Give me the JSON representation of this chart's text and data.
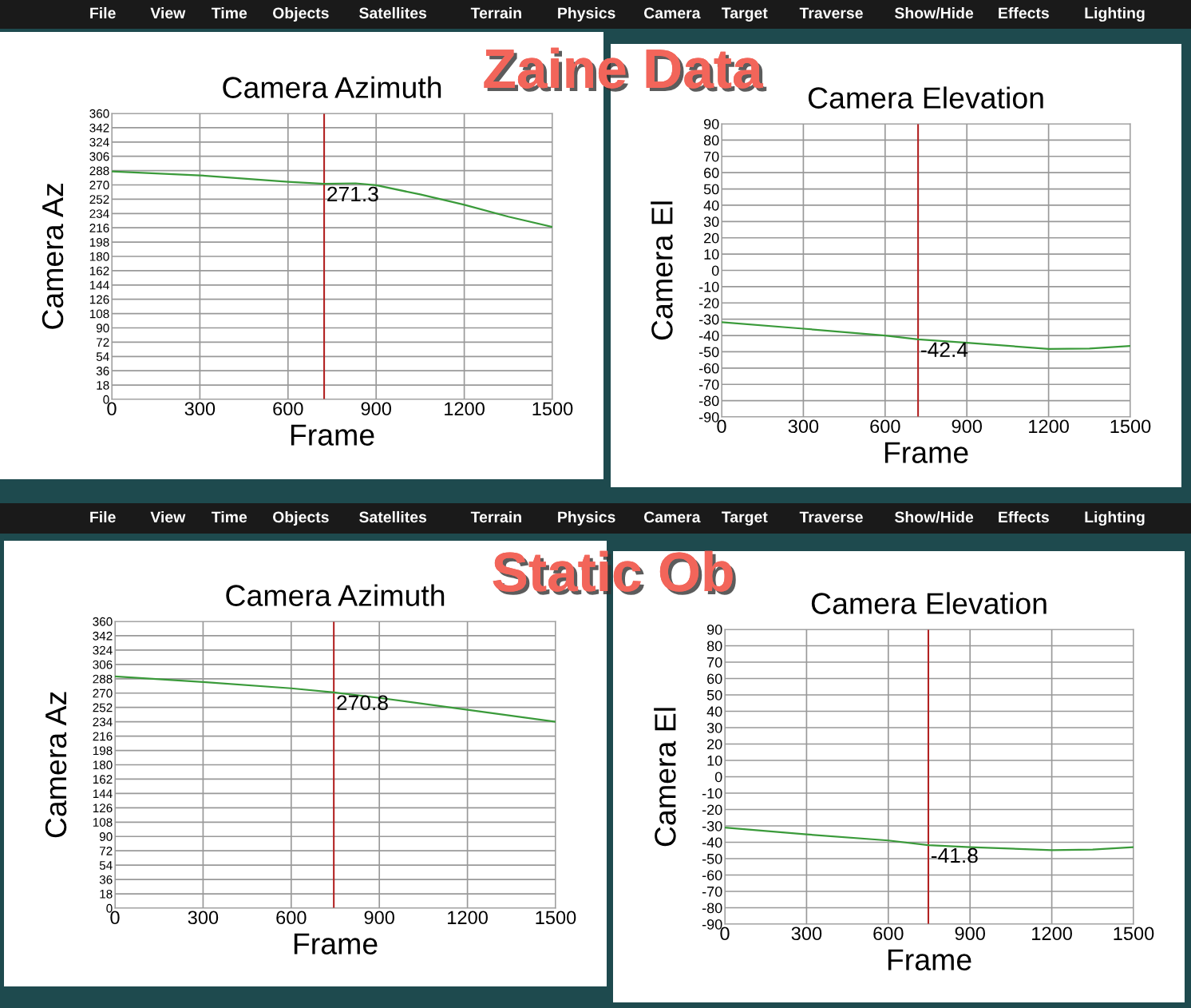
{
  "chart_data": [
    {
      "type": "other",
      "annotations": [
        "File",
        "View",
        "Time",
        "Objects",
        "Satellites",
        "Terrain",
        "Physics",
        "Camera",
        "Target",
        "Traverse",
        "Show/Hide",
        "Effects",
        "Lighting"
      ]
    },
    {
      "type": "line",
      "title": "Camera Azimuth",
      "xlabel": "Frame",
      "ylabel": "Camera Az",
      "x": [
        0,
        300,
        600,
        723,
        830,
        900,
        1050,
        1200,
        1350,
        1500
      ],
      "series": [
        {
          "color": "#3a9a3a",
          "values": [
            287,
            282,
            274,
            271.3,
            272,
            269.6,
            258,
            245,
            230,
            217
          ]
        }
      ],
      "xlim": [
        0,
        1500
      ],
      "xticks": [
        0,
        300,
        600,
        900,
        1200,
        1500
      ],
      "ylim": [
        0,
        360
      ],
      "yticks": [
        0,
        18,
        36,
        54,
        72,
        90,
        108,
        126,
        144,
        162,
        180,
        198,
        216,
        234,
        252,
        270,
        288,
        306,
        324,
        342,
        360
      ],
      "grid": true,
      "marker": "none",
      "ref_lines": [
        {
          "axis": "x",
          "value": 723,
          "color": "#b22222"
        }
      ],
      "annotations": [
        {
          "text": "271.3",
          "x": 723,
          "y": 271.3
        },
        "Zaine Data"
      ]
    },
    {
      "type": "line",
      "title": "Camera Elevation",
      "xlabel": "Frame",
      "ylabel": "Camera El",
      "x": [
        0,
        300,
        600,
        721,
        900,
        1200,
        1350,
        1500
      ],
      "series": [
        {
          "color": "#3a9a3a",
          "values": [
            -31.8,
            -35.8,
            -40,
            -42.4,
            -44.5,
            -48.2,
            -48,
            -46.4
          ]
        }
      ],
      "xlim": [
        0,
        1500
      ],
      "xticks": [
        0,
        300,
        600,
        900,
        1200,
        1500
      ],
      "ylim": [
        -90,
        90
      ],
      "yticks": [
        -90,
        -80,
        -70,
        -60,
        -50,
        -40,
        -30,
        -20,
        -10,
        0,
        10,
        20,
        30,
        40,
        50,
        60,
        70,
        80,
        90
      ],
      "grid": true,
      "marker": "none",
      "ref_lines": [
        {
          "axis": "x",
          "value": 721,
          "color": "#b22222"
        }
      ],
      "annotations": [
        {
          "text": "-42.4",
          "x": 721,
          "y": -42.4
        }
      ]
    },
    {
      "type": "other",
      "annotations": [
        "File",
        "View",
        "Time",
        "Objects",
        "Satellites",
        "Terrain",
        "Physics",
        "Camera",
        "Target",
        "Traverse",
        "Show/Hide",
        "Effects",
        "Lighting"
      ]
    },
    {
      "type": "line",
      "title": "Camera Azimuth",
      "xlabel": "Frame",
      "ylabel": "Camera Az",
      "x": [
        0,
        300,
        600,
        745,
        900,
        1200,
        1500
      ],
      "series": [
        {
          "color": "#3a9a3a",
          "values": [
            291,
            284,
            276,
            270.8,
            264,
            249,
            234
          ]
        }
      ],
      "xlim": [
        0,
        1500
      ],
      "xticks": [
        0,
        300,
        600,
        900,
        1200,
        1500
      ],
      "ylim": [
        0,
        360
      ],
      "yticks": [
        0,
        18,
        36,
        54,
        72,
        90,
        108,
        126,
        144,
        162,
        180,
        198,
        216,
        234,
        252,
        270,
        288,
        306,
        324,
        342,
        360
      ],
      "grid": true,
      "marker": "none",
      "ref_lines": [
        {
          "axis": "x",
          "value": 745,
          "color": "#b22222"
        }
      ],
      "annotations": [
        {
          "text": "270.8",
          "x": 745,
          "y": 270.8
        },
        "Static Ob"
      ]
    },
    {
      "type": "line",
      "title": "Camera Elevation",
      "xlabel": "Frame",
      "ylabel": "Camera El",
      "x": [
        0,
        300,
        600,
        747,
        900,
        1200,
        1350,
        1500
      ],
      "series": [
        {
          "color": "#3a9a3a",
          "values": [
            -31,
            -35.2,
            -38.9,
            -41.8,
            -43,
            -44.8,
            -44.4,
            -43
          ]
        }
      ],
      "xlim": [
        0,
        1500
      ],
      "xticks": [
        0,
        300,
        600,
        900,
        1200,
        1500
      ],
      "ylim": [
        -90,
        90
      ],
      "yticks": [
        -90,
        -80,
        -70,
        -60,
        -50,
        -40,
        -30,
        -20,
        -10,
        0,
        10,
        20,
        30,
        40,
        50,
        60,
        70,
        80,
        90
      ],
      "grid": true,
      "marker": "none",
      "ref_lines": [
        {
          "axis": "x",
          "value": 747,
          "color": "#b22222"
        }
      ],
      "annotations": [
        {
          "text": "-41.8",
          "x": 747,
          "y": -41.8
        }
      ]
    }
  ]
}
